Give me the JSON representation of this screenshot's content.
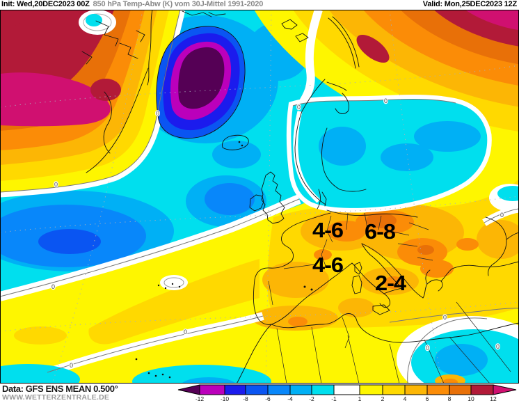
{
  "header": {
    "init_label": "Init: Wed,20DEC2023 00Z",
    "subtitle": "850 hPa Temp-Abw (K) vom 30J-Mittel 1991-2020",
    "valid_label": "Valid: Mon,25DEC2023 12Z"
  },
  "footer": {
    "data_source": "Data: GFS ENS MEAN 0.500°",
    "website": "WWW.WETTERZENTRALE.DE"
  },
  "map": {
    "zero_label": "0",
    "anomaly_labels": [
      {
        "text": "4-6"
      },
      {
        "text": "6-8"
      },
      {
        "text": "4-6"
      },
      {
        "text": "2-4"
      }
    ],
    "palette": {
      "base_ocean": "#00dfee",
      "cold_light": "#00b0f5",
      "cold_mid": "#0887fa",
      "cold_strong": "#0a55f2",
      "cold_deep": "#1b1bed",
      "cold_magenta": "#bb00bb",
      "cold_purple": "#550055",
      "warm_yellow": "#fef600",
      "warm_gold": "#ffd900",
      "warm_amber": "#fcb605",
      "warm_orange": "#fb8c07",
      "warm_dark_orange": "#e87008",
      "warm_dark_red": "#b21a38",
      "warm_crimson": "#d01070",
      "neutral": "#ffffff"
    }
  },
  "colorbar": {
    "tick_labels": [
      "-12",
      "-10",
      "-8",
      "-6",
      "-4",
      "-2",
      "-1",
      "1",
      "2",
      "4",
      "6",
      "8",
      "10",
      "12"
    ],
    "segment_colors": [
      "#bb00bb",
      "#1b1bed",
      "#0a55f2",
      "#0887fa",
      "#00b0f5",
      "#00dfee",
      "#ffffff",
      "#fef600",
      "#ffd900",
      "#fcb605",
      "#fb8c07",
      "#e87008",
      "#b21a38"
    ],
    "under_color": "#550055",
    "over_color": "#d01070"
  }
}
